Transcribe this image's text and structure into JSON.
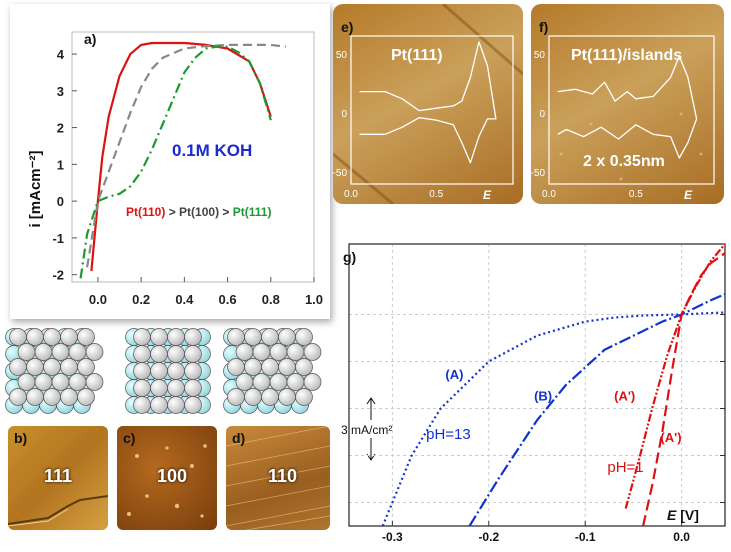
{
  "panel_a": {
    "label": "a)",
    "electrolyte": "0.1M KOH",
    "ranking": [
      {
        "text": "Pt(110)",
        "color": "#dd1111"
      },
      {
        "text": " > ",
        "color": "#333333"
      },
      {
        "text": "Pt(100)",
        "color": "#444444"
      },
      {
        "text": " > ",
        "color": "#333333"
      },
      {
        "text": "Pt(111)",
        "color": "#1a9a30"
      }
    ]
  },
  "panel_e": {
    "label": "e)",
    "title": "Pt(111)"
  },
  "panel_f": {
    "label": "f)",
    "title": "Pt(111)/islands",
    "scale_note": "2 x 0.35nm"
  },
  "lattices": [
    "111",
    "100",
    "110"
  ],
  "afm_images": [
    {
      "label": "b)",
      "face": "111"
    },
    {
      "label": "c)",
      "face": "100"
    },
    {
      "label": "d)",
      "face": "110"
    }
  ],
  "panel_g": {
    "label": "g)",
    "scale_bar": "3 mA/cm²",
    "ann": {
      "A": "(A)",
      "B": "(B)",
      "Ap": "(A')",
      "Ap2": "(A')",
      "ph13": "pH=13",
      "ph1": "pH=1"
    }
  },
  "chart_data": [
    {
      "id": "a",
      "type": "line",
      "ylabel": "i [mAcm⁻²]",
      "xlabel": "",
      "xlim": [
        -0.12,
        1.0
      ],
      "ylim": [
        -2.2,
        4.6
      ],
      "xticks": [
        0.0,
        0.2,
        0.4,
        0.6,
        0.8,
        1.0
      ],
      "yticks": [
        -2,
        -1,
        0,
        1,
        2,
        3,
        4
      ],
      "series": [
        {
          "name": "Pt(110)",
          "color": "#dd1111",
          "dash": "",
          "x": [
            -0.03,
            0.0,
            0.02,
            0.05,
            0.1,
            0.15,
            0.2,
            0.25,
            0.3,
            0.4,
            0.5,
            0.6,
            0.7,
            0.75,
            0.8
          ],
          "y": [
            -1.9,
            0.0,
            1.2,
            2.3,
            3.4,
            4.0,
            4.25,
            4.3,
            4.3,
            4.3,
            4.25,
            4.15,
            3.8,
            3.2,
            2.3
          ]
        },
        {
          "name": "Pt(100)",
          "color": "#888888",
          "dash": "9,5",
          "x": [
            -0.05,
            0.0,
            0.05,
            0.1,
            0.15,
            0.2,
            0.25,
            0.3,
            0.4,
            0.5,
            0.6,
            0.7,
            0.8,
            0.87
          ],
          "y": [
            -1.8,
            0.0,
            0.8,
            1.6,
            2.4,
            3.1,
            3.6,
            3.9,
            4.15,
            4.22,
            4.25,
            4.25,
            4.25,
            4.2
          ]
        },
        {
          "name": "Pt(111)",
          "color": "#1a9a30",
          "dash": "10,4,2,4",
          "x": [
            -0.08,
            -0.05,
            0.0,
            0.05,
            0.1,
            0.15,
            0.2,
            0.25,
            0.3,
            0.35,
            0.4,
            0.45,
            0.5,
            0.55,
            0.6,
            0.65,
            0.7,
            0.75,
            0.8
          ],
          "y": [
            -2.1,
            -0.9,
            0.0,
            0.12,
            0.2,
            0.4,
            0.8,
            1.4,
            2.1,
            2.8,
            3.5,
            3.9,
            4.15,
            4.2,
            4.2,
            4.05,
            3.8,
            3.2,
            2.2
          ]
        }
      ]
    },
    {
      "id": "e",
      "type": "line",
      "xlabel": "E",
      "xlim": [
        0.0,
        0.95
      ],
      "ylim": [
        -60,
        65
      ],
      "xticks": [
        0.0,
        0.5
      ],
      "yticks": [
        -50,
        0,
        50
      ],
      "series": [
        {
          "name": "",
          "color": "#ffffff",
          "dash": "",
          "x": [
            0.05,
            0.2,
            0.3,
            0.4,
            0.5,
            0.6,
            0.65,
            0.7,
            0.75,
            0.8,
            0.85,
            0.8,
            0.75,
            0.7,
            0.65,
            0.6,
            0.5,
            0.4,
            0.3,
            0.2,
            0.05
          ],
          "y": [
            18,
            18,
            12,
            2,
            4,
            6,
            10,
            30,
            60,
            40,
            -5,
            -5,
            -20,
            -42,
            -25,
            -10,
            -6,
            -4,
            -12,
            -18,
            -18
          ]
        }
      ]
    },
    {
      "id": "f",
      "type": "line",
      "xlabel": "E",
      "xlim": [
        0.0,
        0.95
      ],
      "ylim": [
        -60,
        65
      ],
      "xticks": [
        0.0,
        0.5
      ],
      "yticks": [
        -50,
        0,
        50
      ],
      "series": [
        {
          "name": "",
          "color": "#ffffff",
          "dash": "",
          "x": [
            0.05,
            0.15,
            0.25,
            0.32,
            0.38,
            0.45,
            0.5,
            0.6,
            0.7,
            0.75,
            0.8,
            0.85,
            0.85,
            0.8,
            0.75,
            0.7,
            0.6,
            0.5,
            0.4,
            0.3,
            0.2,
            0.1,
            0.05
          ],
          "y": [
            18,
            20,
            16,
            26,
            10,
            18,
            12,
            14,
            30,
            48,
            30,
            -5,
            -5,
            -25,
            -38,
            -20,
            -18,
            -10,
            -22,
            -12,
            -20,
            -14,
            -18
          ]
        }
      ]
    },
    {
      "id": "g",
      "type": "line",
      "xlabel": "E [V]",
      "xlim": [
        -0.345,
        0.045
      ],
      "ylim": [
        -20.7,
        6.9
      ],
      "xticks": [
        -0.3,
        -0.2,
        -0.1,
        0.0
      ],
      "xtick_labels": [
        "-0.3",
        "-0.2",
        "-0.1",
        "0.0"
      ],
      "series": [
        {
          "name": "pH=13 (A)",
          "color": "#1133cc",
          "dash": "2,3",
          "x": [
            -0.31,
            -0.28,
            -0.25,
            -0.2,
            -0.15,
            -0.1,
            -0.07,
            -0.04,
            -0.01,
            0.0,
            0.02,
            0.045
          ],
          "y": [
            -20.7,
            -13.8,
            -9.2,
            -4.6,
            -2.07,
            -0.69,
            -0.3,
            -0.1,
            -0.02,
            0.0,
            0.1,
            0.2
          ]
        },
        {
          "name": "pH=13 (B)",
          "color": "#1133cc",
          "dash": "12,3,2,3",
          "x": [
            -0.22,
            -0.19,
            -0.15,
            -0.12,
            -0.08,
            -0.05,
            -0.02,
            0.0,
            0.03,
            0.045
          ],
          "y": [
            -20.7,
            -16.1,
            -10.35,
            -6.9,
            -3.45,
            -2.07,
            -0.69,
            0.0,
            1.38,
            2.0
          ]
        },
        {
          "name": "pH=1 (A')",
          "color": "#dd1111",
          "dash": "8,2,2,2,2,2",
          "x": [
            -0.058,
            -0.045,
            -0.03,
            -0.015,
            0.0,
            0.015,
            0.03,
            0.045
          ],
          "y": [
            -19.0,
            -14.5,
            -9.0,
            -4.0,
            0.0,
            2.8,
            5.2,
            6.9
          ]
        },
        {
          "name": "pH=1 (A')",
          "color": "#dd1111",
          "dash": "11,5",
          "x": [
            -0.04,
            -0.03,
            -0.02,
            -0.01,
            0.0,
            0.01,
            0.02,
            0.03,
            0.045
          ],
          "y": [
            -20.7,
            -16.5,
            -11.5,
            -5.5,
            0.0,
            2.0,
            3.8,
            5.0,
            6.0
          ]
        }
      ]
    }
  ]
}
